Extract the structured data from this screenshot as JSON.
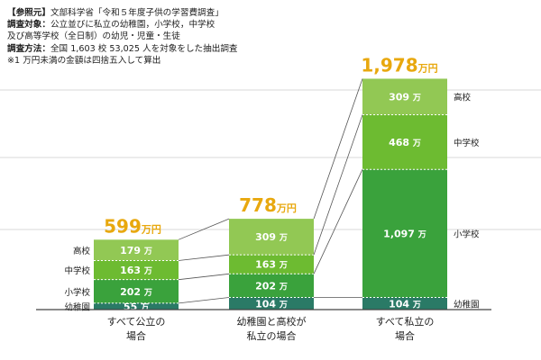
{
  "note": {
    "lines": [
      {
        "label": "【参照元】",
        "text": "文部科学省「令和５年度子供の学習費調査」"
      },
      {
        "label": "調査対象：",
        "text": "公立並びに私立の幼稚園，小学校，中学校"
      },
      {
        "label": "",
        "text": "及び高等学校（全日制）の幼児・児童・生徒"
      },
      {
        "label": "調査方法：",
        "text": "全国 1,603 校 53,025 人を対象をした抽出調査"
      },
      {
        "label": "",
        "text": "※1 万円未満の金額は四捨五入して算出"
      }
    ]
  },
  "chart_data": {
    "type": "bar",
    "stacked": true,
    "unit": "万",
    "total_unit": "万円",
    "categories": [
      "すべて公立の\n場合",
      "幼稚園と高校が\n私立の場合",
      "すべて私立の\n場合"
    ],
    "series": [
      {
        "name": "幼稚園",
        "values": [
          55,
          104,
          104
        ]
      },
      {
        "name": "小学校",
        "values": [
          202,
          202,
          1097
        ]
      },
      {
        "name": "中学校",
        "values": [
          163,
          163,
          468
        ]
      },
      {
        "name": "高校",
        "values": [
          179,
          309,
          309
        ]
      }
    ],
    "totals": [
      "599",
      "778",
      "1,978"
    ],
    "value_labels": [
      [
        "55",
        "202",
        "163",
        "179"
      ],
      [
        "104",
        "202",
        "163",
        "309"
      ],
      [
        "104",
        "1,097",
        "468",
        "309"
      ]
    ],
    "ylim": [
      0,
      2000
    ],
    "grid": true
  },
  "colors": {
    "kinder": "#2a7a66",
    "elementary": "#3aa23c",
    "junior": "#6dbb31",
    "high": "#92c854",
    "total": "#e8a80e",
    "grid": "#d9d9d9",
    "axis": "#444444",
    "connector": "#555555"
  }
}
